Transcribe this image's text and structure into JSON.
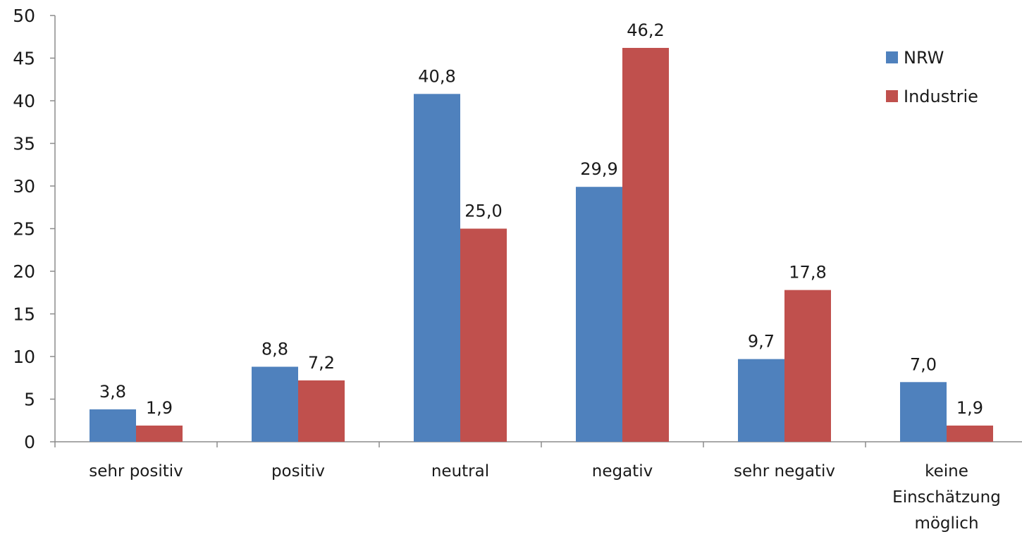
{
  "chart_data": {
    "type": "bar",
    "categories": [
      [
        "sehr positiv"
      ],
      [
        "positiv"
      ],
      [
        "neutral"
      ],
      [
        "negativ"
      ],
      [
        "sehr negativ"
      ],
      [
        "keine",
        "Einschätzung",
        "möglich"
      ]
    ],
    "series": [
      {
        "name": "NRW",
        "color": "#4F81BD",
        "values": [
          3.8,
          8.8,
          40.8,
          29.9,
          9.7,
          7.0
        ],
        "labels": [
          "3,8",
          "8,8",
          "40,8",
          "29,9",
          "9,7",
          "7,0"
        ]
      },
      {
        "name": "Industrie",
        "color": "#C0504D",
        "values": [
          1.9,
          7.2,
          25.0,
          46.2,
          17.8,
          1.9
        ],
        "labels": [
          "1,9",
          "7,2",
          "25,0",
          "46,2",
          "17,8",
          "1,9"
        ]
      }
    ],
    "ylim": [
      0,
      50
    ],
    "yticks": [
      "0",
      "5",
      "10",
      "15",
      "20",
      "25",
      "30",
      "35",
      "40",
      "45",
      "50"
    ],
    "grid": false,
    "legend": "top-right",
    "title": "",
    "xlabel": "",
    "ylabel": ""
  }
}
